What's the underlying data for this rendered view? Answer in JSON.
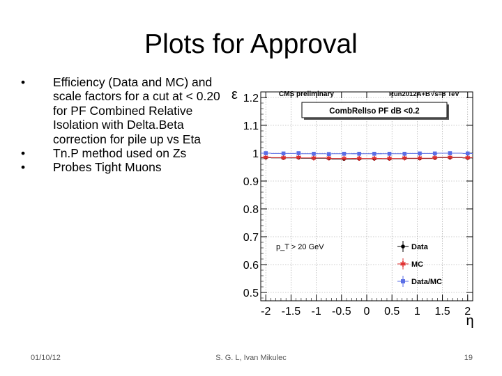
{
  "slide": {
    "title": "Plots for Approval",
    "bullets": [
      "Efficiency (Data and MC) and scale factors for a cut at < 0.20 for PF Combined Relative Isolation with Delta.Beta correction for pile up vs Eta",
      "Tn.P method used on Zs",
      "Probes Tight Muons"
    ],
    "bullet_symbol": "•"
  },
  "footer": {
    "date": "01/10/12",
    "author": "S. G. L, Ivan Mikulec",
    "page": "19"
  },
  "chart_data": {
    "type": "scatter",
    "header_left": "CMS preliminary",
    "header_right_run": "Run2012A+B",
    "header_right_energy": "√s=8 TeV",
    "box_label": "CombRelIso PF dB <0.2",
    "cut_label": "p_T > 20 GeV",
    "xlabel": "η",
    "ylabel": "ε",
    "xlim": [
      -2.1,
      2.1
    ],
    "ylim": [
      0.47,
      1.22
    ],
    "x_ticks": [
      -2,
      -1.5,
      -1,
      -0.5,
      0,
      0.5,
      1,
      1.5,
      2
    ],
    "x_tick_labels": [
      "-2",
      "-1.5",
      "-1",
      "-0.5",
      "0",
      "0.5",
      "1",
      "1.5",
      "2"
    ],
    "y_ticks": [
      0.5,
      0.6,
      0.7,
      0.8,
      0.9,
      1,
      1.1,
      1.2
    ],
    "y_tick_labels": [
      "0.5",
      "0.6",
      "0.7",
      "0.8",
      "0.9",
      "1",
      "1.1",
      "1.2"
    ],
    "grid": true,
    "legend_position": "bottom-right",
    "x": [
      -2.0,
      -1.65,
      -1.35,
      -1.05,
      -0.75,
      -0.45,
      -0.15,
      0.15,
      0.45,
      0.75,
      1.05,
      1.35,
      1.65,
      2.0
    ],
    "x_err": [
      0.1,
      0.25,
      0.05,
      0.25,
      0.05,
      0.25,
      0.15,
      0.15,
      0.25,
      0.05,
      0.25,
      0.05,
      0.25,
      0.1
    ],
    "series": [
      {
        "name": "Data",
        "color": "#000000",
        "marker": "circle",
        "values": [
          0.984,
          0.983,
          0.984,
          0.982,
          0.981,
          0.979,
          0.98,
          0.98,
          0.98,
          0.982,
          0.981,
          0.983,
          0.984,
          0.983
        ]
      },
      {
        "name": "MC",
        "color": "#e03030",
        "marker": "star",
        "values": [
          0.985,
          0.984,
          0.985,
          0.983,
          0.982,
          0.981,
          0.981,
          0.981,
          0.981,
          0.983,
          0.982,
          0.984,
          0.985,
          0.984
        ]
      },
      {
        "name": "Data/MC",
        "color": "#5a6ee6",
        "marker": "square",
        "values": [
          1.0,
          0.999,
          1.0,
          0.998,
          0.997,
          0.998,
          0.998,
          0.998,
          0.998,
          0.998,
          0.999,
          0.999,
          1.0,
          0.999
        ]
      }
    ]
  }
}
